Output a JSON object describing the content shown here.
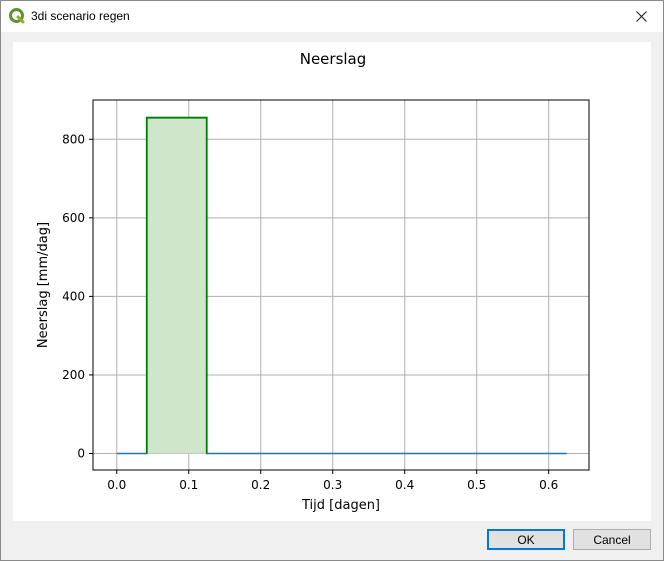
{
  "window": {
    "title": "3di scenario regen",
    "close_icon": "close-icon"
  },
  "buttons": {
    "ok_label": "OK",
    "cancel_label": "Cancel"
  },
  "chart_data": {
    "type": "line",
    "title": "Neerslag",
    "xlabel": "Tijd [dagen]",
    "ylabel": "Neerslag [mm/dag]",
    "xlim": [
      -0.033,
      0.656
    ],
    "ylim": [
      -42,
      900
    ],
    "xticks": [
      0.0,
      0.1,
      0.2,
      0.3,
      0.4,
      0.5,
      0.6
    ],
    "xtick_labels": [
      "0.0",
      "0.1",
      "0.2",
      "0.3",
      "0.4",
      "0.5",
      "0.6"
    ],
    "yticks": [
      0,
      200,
      400,
      600,
      800
    ],
    "ytick_labels": [
      "0",
      "200",
      "400",
      "600",
      "800"
    ],
    "grid": true,
    "series": [
      {
        "x": [
          0.0,
          0.0417,
          0.0417,
          0.125,
          0.125,
          0.625
        ],
        "y": [
          0,
          0,
          855,
          855,
          0,
          0
        ],
        "color": "#1f77b4"
      }
    ],
    "shaded_region": {
      "x0": 0.0417,
      "x1": 0.125,
      "y": 855,
      "fill": "#cfe6cb",
      "edge": "#008000"
    }
  }
}
